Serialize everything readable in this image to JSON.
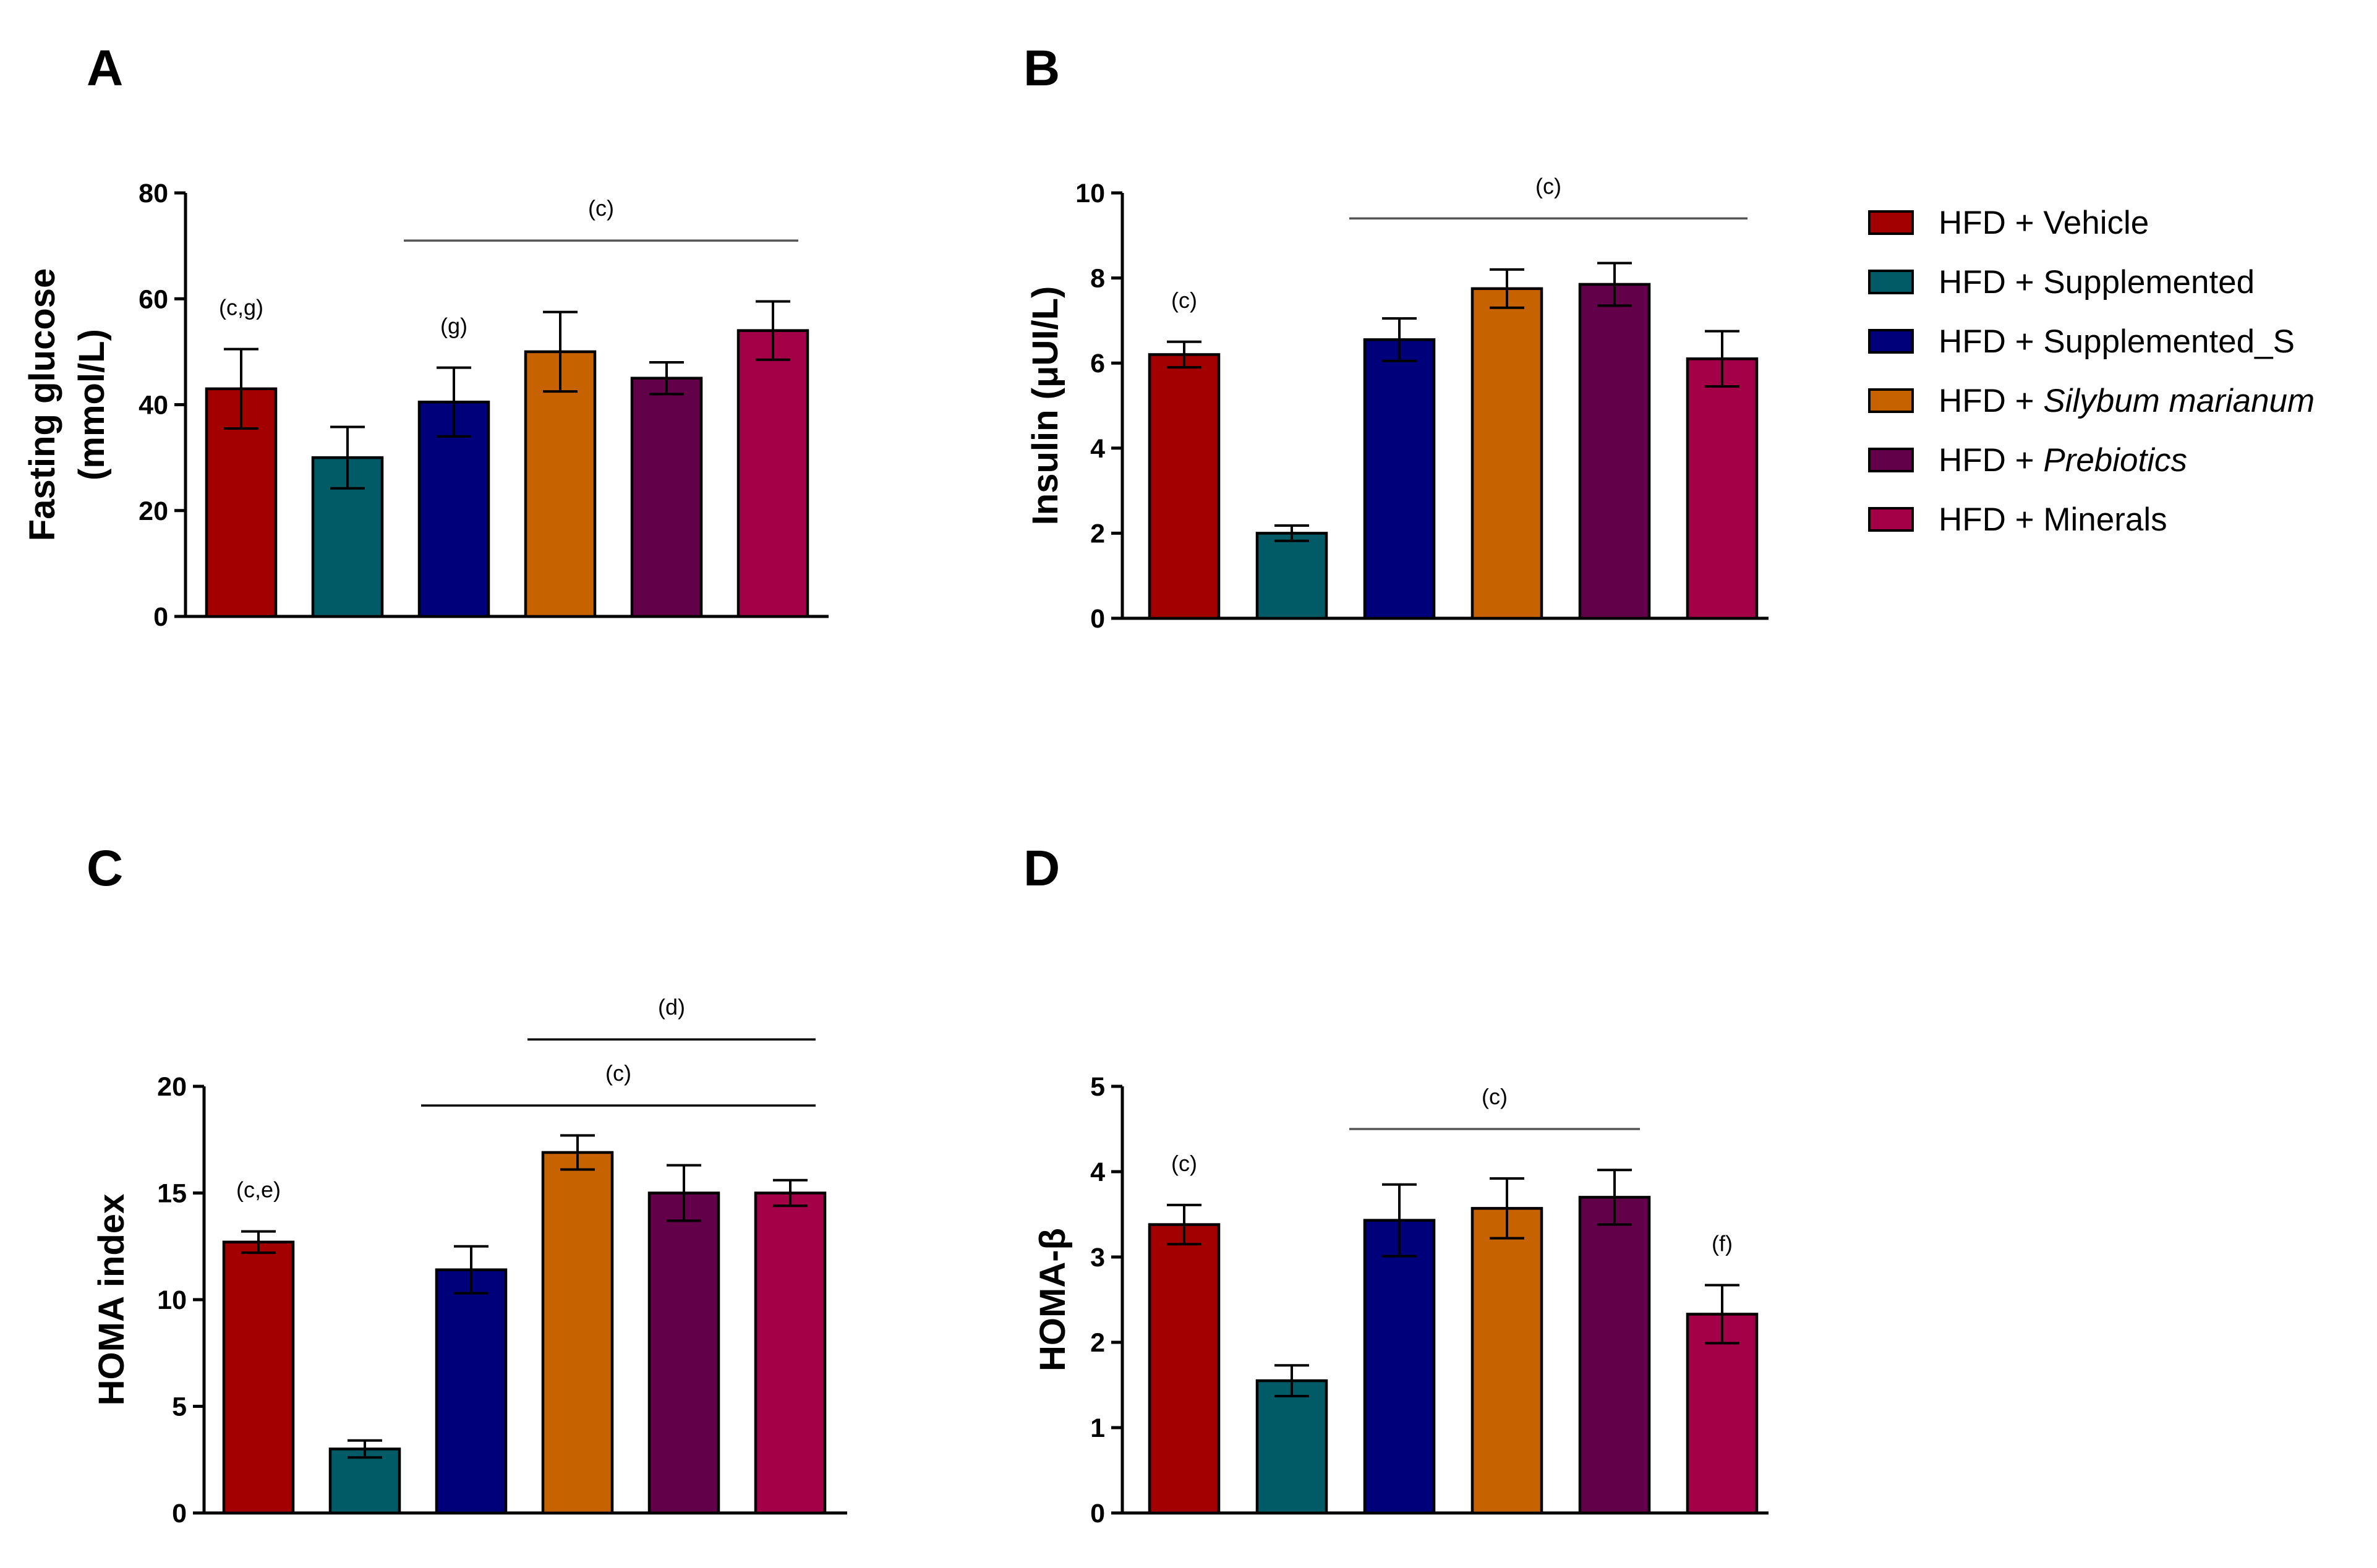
{
  "series_colors": [
    "#a30000",
    "#005b66",
    "#00007a",
    "#c66200",
    "#620049",
    "#a30047"
  ],
  "legend": [
    {
      "parts": [
        {
          "text": "HFD + Vehicle",
          "italic": false
        }
      ]
    },
    {
      "parts": [
        {
          "text": "HFD + Supplemented",
          "italic": false
        }
      ]
    },
    {
      "parts": [
        {
          "text": "HFD + Supplemented_S",
          "italic": false
        }
      ]
    },
    {
      "parts": [
        {
          "text": "HFD + ",
          "italic": false
        },
        {
          "text": "Silybum marianum",
          "italic": true
        }
      ]
    },
    {
      "parts": [
        {
          "text": "HFD + ",
          "italic": false
        },
        {
          "text": "Prebiotics",
          "italic": true
        }
      ]
    },
    {
      "parts": [
        {
          "text": "HFD + Minerals",
          "italic": false
        }
      ]
    }
  ],
  "chart_data": [
    {
      "panel": "A",
      "type": "bar",
      "ylabel_lines": [
        "Fasting glucose",
        "(mmol/L)"
      ],
      "ylim": [
        0,
        80
      ],
      "yticks": [
        0,
        20,
        40,
        60,
        80
      ],
      "categories": [
        "HFD + Vehicle",
        "HFD + Supplemented",
        "HFD + Supplemented_S",
        "HFD + Silybum marianum",
        "HFD + Prebiotics",
        "HFD + Minerals"
      ],
      "values": [
        43,
        30,
        40.5,
        50,
        45,
        54
      ],
      "errors": [
        7.5,
        5.8,
        6.5,
        7.5,
        3.0,
        5.5
      ],
      "annotations": [
        {
          "text": "(c,g)",
          "bar": 0
        },
        {
          "text": "(g)",
          "bar": 2
        }
      ],
      "sig_lines": [
        {
          "text": "(c)",
          "from": 2,
          "to": 5,
          "level": 71
        }
      ]
    },
    {
      "panel": "B",
      "type": "bar",
      "ylabel_lines": [
        "Insulin (μUI/L)"
      ],
      "ylim": [
        0,
        10
      ],
      "yticks": [
        0,
        2,
        4,
        6,
        8,
        10
      ],
      "categories": [
        "HFD + Vehicle",
        "HFD + Supplemented",
        "HFD + Supplemented_S",
        "HFD + Silybum marianum",
        "HFD + Prebiotics",
        "HFD + Minerals"
      ],
      "values": [
        6.2,
        2.0,
        6.55,
        7.75,
        7.85,
        6.1
      ],
      "errors": [
        0.3,
        0.18,
        0.5,
        0.45,
        0.5,
        0.65
      ],
      "annotations": [
        {
          "text": "(c)",
          "bar": 0
        }
      ],
      "sig_lines": [
        {
          "text": "(c)",
          "from": 2,
          "to": 5,
          "level": 9.4
        }
      ]
    },
    {
      "panel": "C",
      "type": "bar",
      "ylabel_lines": [
        "HOMA index"
      ],
      "ylim": [
        0,
        20
      ],
      "yticks": [
        0,
        5,
        10,
        15,
        20
      ],
      "categories": [
        "HFD + Vehicle",
        "HFD + Supplemented",
        "HFD + Supplemented_S",
        "HFD + Silybum marianum",
        "HFD + Prebiotics",
        "HFD + Minerals"
      ],
      "values": [
        12.7,
        3.0,
        11.4,
        16.9,
        15.0,
        15.0
      ],
      "errors": [
        0.5,
        0.4,
        1.1,
        0.8,
        1.3,
        0.6
      ],
      "annotations": [
        {
          "text": "(c,e)",
          "bar": 0
        }
      ],
      "sig_lines": [
        {
          "text": "(c)",
          "from": 2,
          "to": 5,
          "level": 19.1
        },
        {
          "text": "(d)",
          "from": 3,
          "to": 5,
          "level": 22.2
        }
      ]
    },
    {
      "panel": "D",
      "type": "bar",
      "ylabel_lines": [
        "HOMA-β"
      ],
      "ylim": [
        0,
        5
      ],
      "yticks": [
        0,
        1,
        2,
        3,
        4,
        5
      ],
      "categories": [
        "HFD + Vehicle",
        "HFD + Supplemented",
        "HFD + Supplemented_S",
        "HFD + Silybum marianum",
        "HFD + Prebiotics",
        "HFD + Minerals"
      ],
      "values": [
        3.38,
        1.55,
        3.43,
        3.57,
        3.7,
        2.33
      ],
      "errors": [
        0.23,
        0.18,
        0.42,
        0.35,
        0.32,
        0.34
      ],
      "annotations": [
        {
          "text": "(c)",
          "bar": 0
        },
        {
          "text": "(f)",
          "bar": 5
        }
      ],
      "sig_lines": [
        {
          "text": "(c)",
          "from": 2,
          "to": 4,
          "level": 4.5
        }
      ]
    }
  ]
}
